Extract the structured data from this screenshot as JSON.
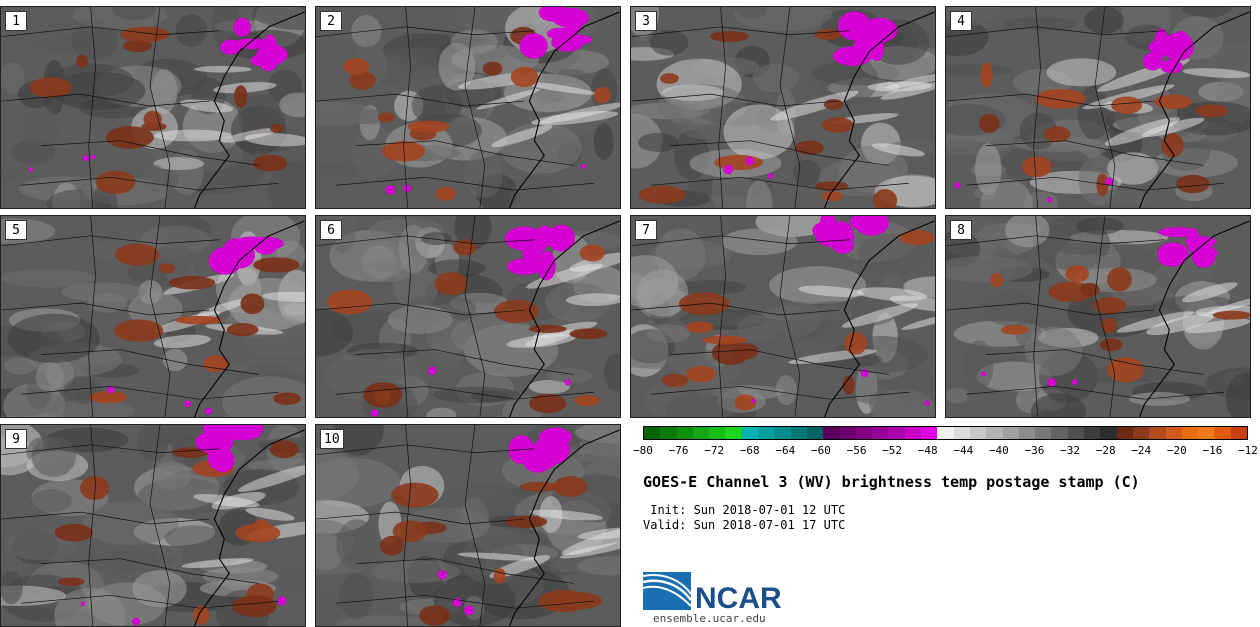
{
  "figure": {
    "title": "GOES-E Channel 3 (WV) brightness temp postage stamp (C)",
    "init_line": " Init: Sun 2018-07-01 12 UTC",
    "valid_line": "Valid: Sun 2018-07-01 17 UTC",
    "website": "ensemble.ucar.edu",
    "logo_text": "NCAR"
  },
  "panels": [
    {
      "label": "1"
    },
    {
      "label": "2"
    },
    {
      "label": "3"
    },
    {
      "label": "4"
    },
    {
      "label": "5"
    },
    {
      "label": "6"
    },
    {
      "label": "7"
    },
    {
      "label": "8"
    },
    {
      "label": "9"
    },
    {
      "label": "10"
    }
  ],
  "colorbar": {
    "ticks": [
      "−80",
      "−76",
      "−72",
      "−68",
      "−64",
      "−60",
      "−56",
      "−52",
      "−48",
      "−44",
      "−40",
      "−36",
      "−32",
      "−28",
      "−24",
      "−20",
      "−16",
      "−12"
    ],
    "colors": [
      "#006400",
      "#0a7a0a",
      "#0f8f0f",
      "#14a614",
      "#19bd19",
      "#1fd41f",
      "#00b3b3",
      "#00a0a0",
      "#008c8c",
      "#007878",
      "#006464",
      "#5a005a",
      "#6e006e",
      "#820082",
      "#960096",
      "#aa00aa",
      "#c800c8",
      "#e100e1",
      "#f0f0f0",
      "#dcdcdc",
      "#c8c8c8",
      "#b4b4b4",
      "#a0a0a0",
      "#8c8c8c",
      "#787878",
      "#646464",
      "#505050",
      "#3c3c3c",
      "#2d2d2d",
      "#6b2a14",
      "#8b3a1c",
      "#b04a1f",
      "#d25a1a",
      "#e86c10",
      "#f07a1a",
      "#e05a10",
      "#c84010"
    ]
  }
}
